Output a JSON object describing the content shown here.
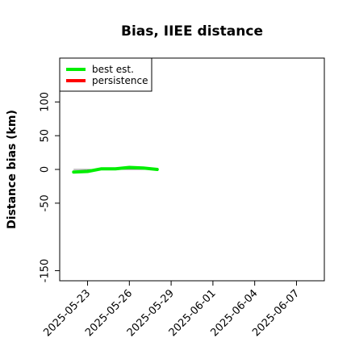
{
  "chart_data": {
    "type": "line",
    "title": "Bias, IIEE distance",
    "xlabel": "",
    "ylabel": "Distance bias (km)",
    "x_ticks": [
      "2025-05-23",
      "2025-05-26",
      "2025-05-29",
      "2025-06-01",
      "2025-06-04",
      "2025-06-07"
    ],
    "y_ticks": [
      -150,
      -50,
      0,
      50,
      100
    ],
    "xlim": [
      "2025-05-21",
      "2025-06-09"
    ],
    "ylim": [
      -165,
      165
    ],
    "zero_line": true,
    "legend": {
      "placement": "top-left"
    },
    "series": [
      {
        "name": "best est.",
        "color": "#00ee00",
        "x": [
          "2025-05-22",
          "2025-05-23",
          "2025-05-24",
          "2025-05-25",
          "2025-05-26",
          "2025-05-27",
          "2025-05-28"
        ],
        "values": [
          -4,
          -3,
          1,
          1,
          3,
          2,
          0
        ]
      },
      {
        "name": "persistence",
        "color": "#ff0000",
        "x": [],
        "values": []
      }
    ]
  }
}
